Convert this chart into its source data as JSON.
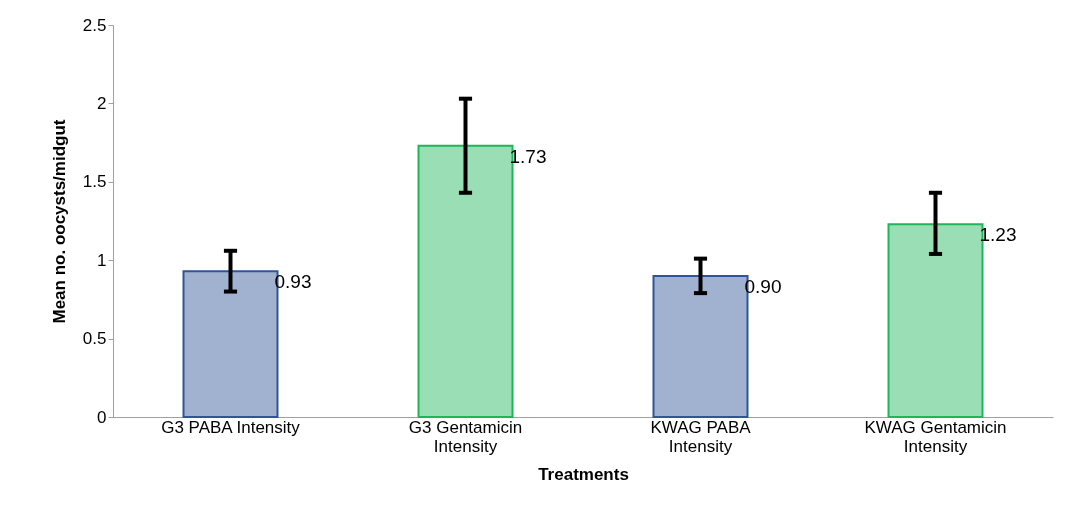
{
  "chart_data": {
    "type": "bar",
    "xlabel": "Treatments",
    "ylabel": "Mean no. oocysts/midgut",
    "categories": [
      "G3  PABA Intensity",
      "G3 Gentamicin Intensity",
      "KWAG PABA Intensity",
      "KWAG Gentamicin Intensity"
    ],
    "values": [
      0.93,
      1.73,
      0.9,
      1.23
    ],
    "errors": [
      [
        0.8,
        1.06
      ],
      [
        1.43,
        2.03
      ],
      [
        0.79,
        1.01
      ],
      [
        1.04,
        1.43
      ]
    ],
    "value_labels": [
      "0.93",
      "1.73",
      "0.90",
      "1.23"
    ],
    "colors": [
      "#2f5597",
      "#1fb55a",
      "#2f5597",
      "#1fb55a"
    ],
    "ylim": [
      0,
      2.5
    ],
    "yticks": [
      0,
      0.5,
      1,
      1.5,
      2,
      2.5
    ],
    "grid": false
  }
}
